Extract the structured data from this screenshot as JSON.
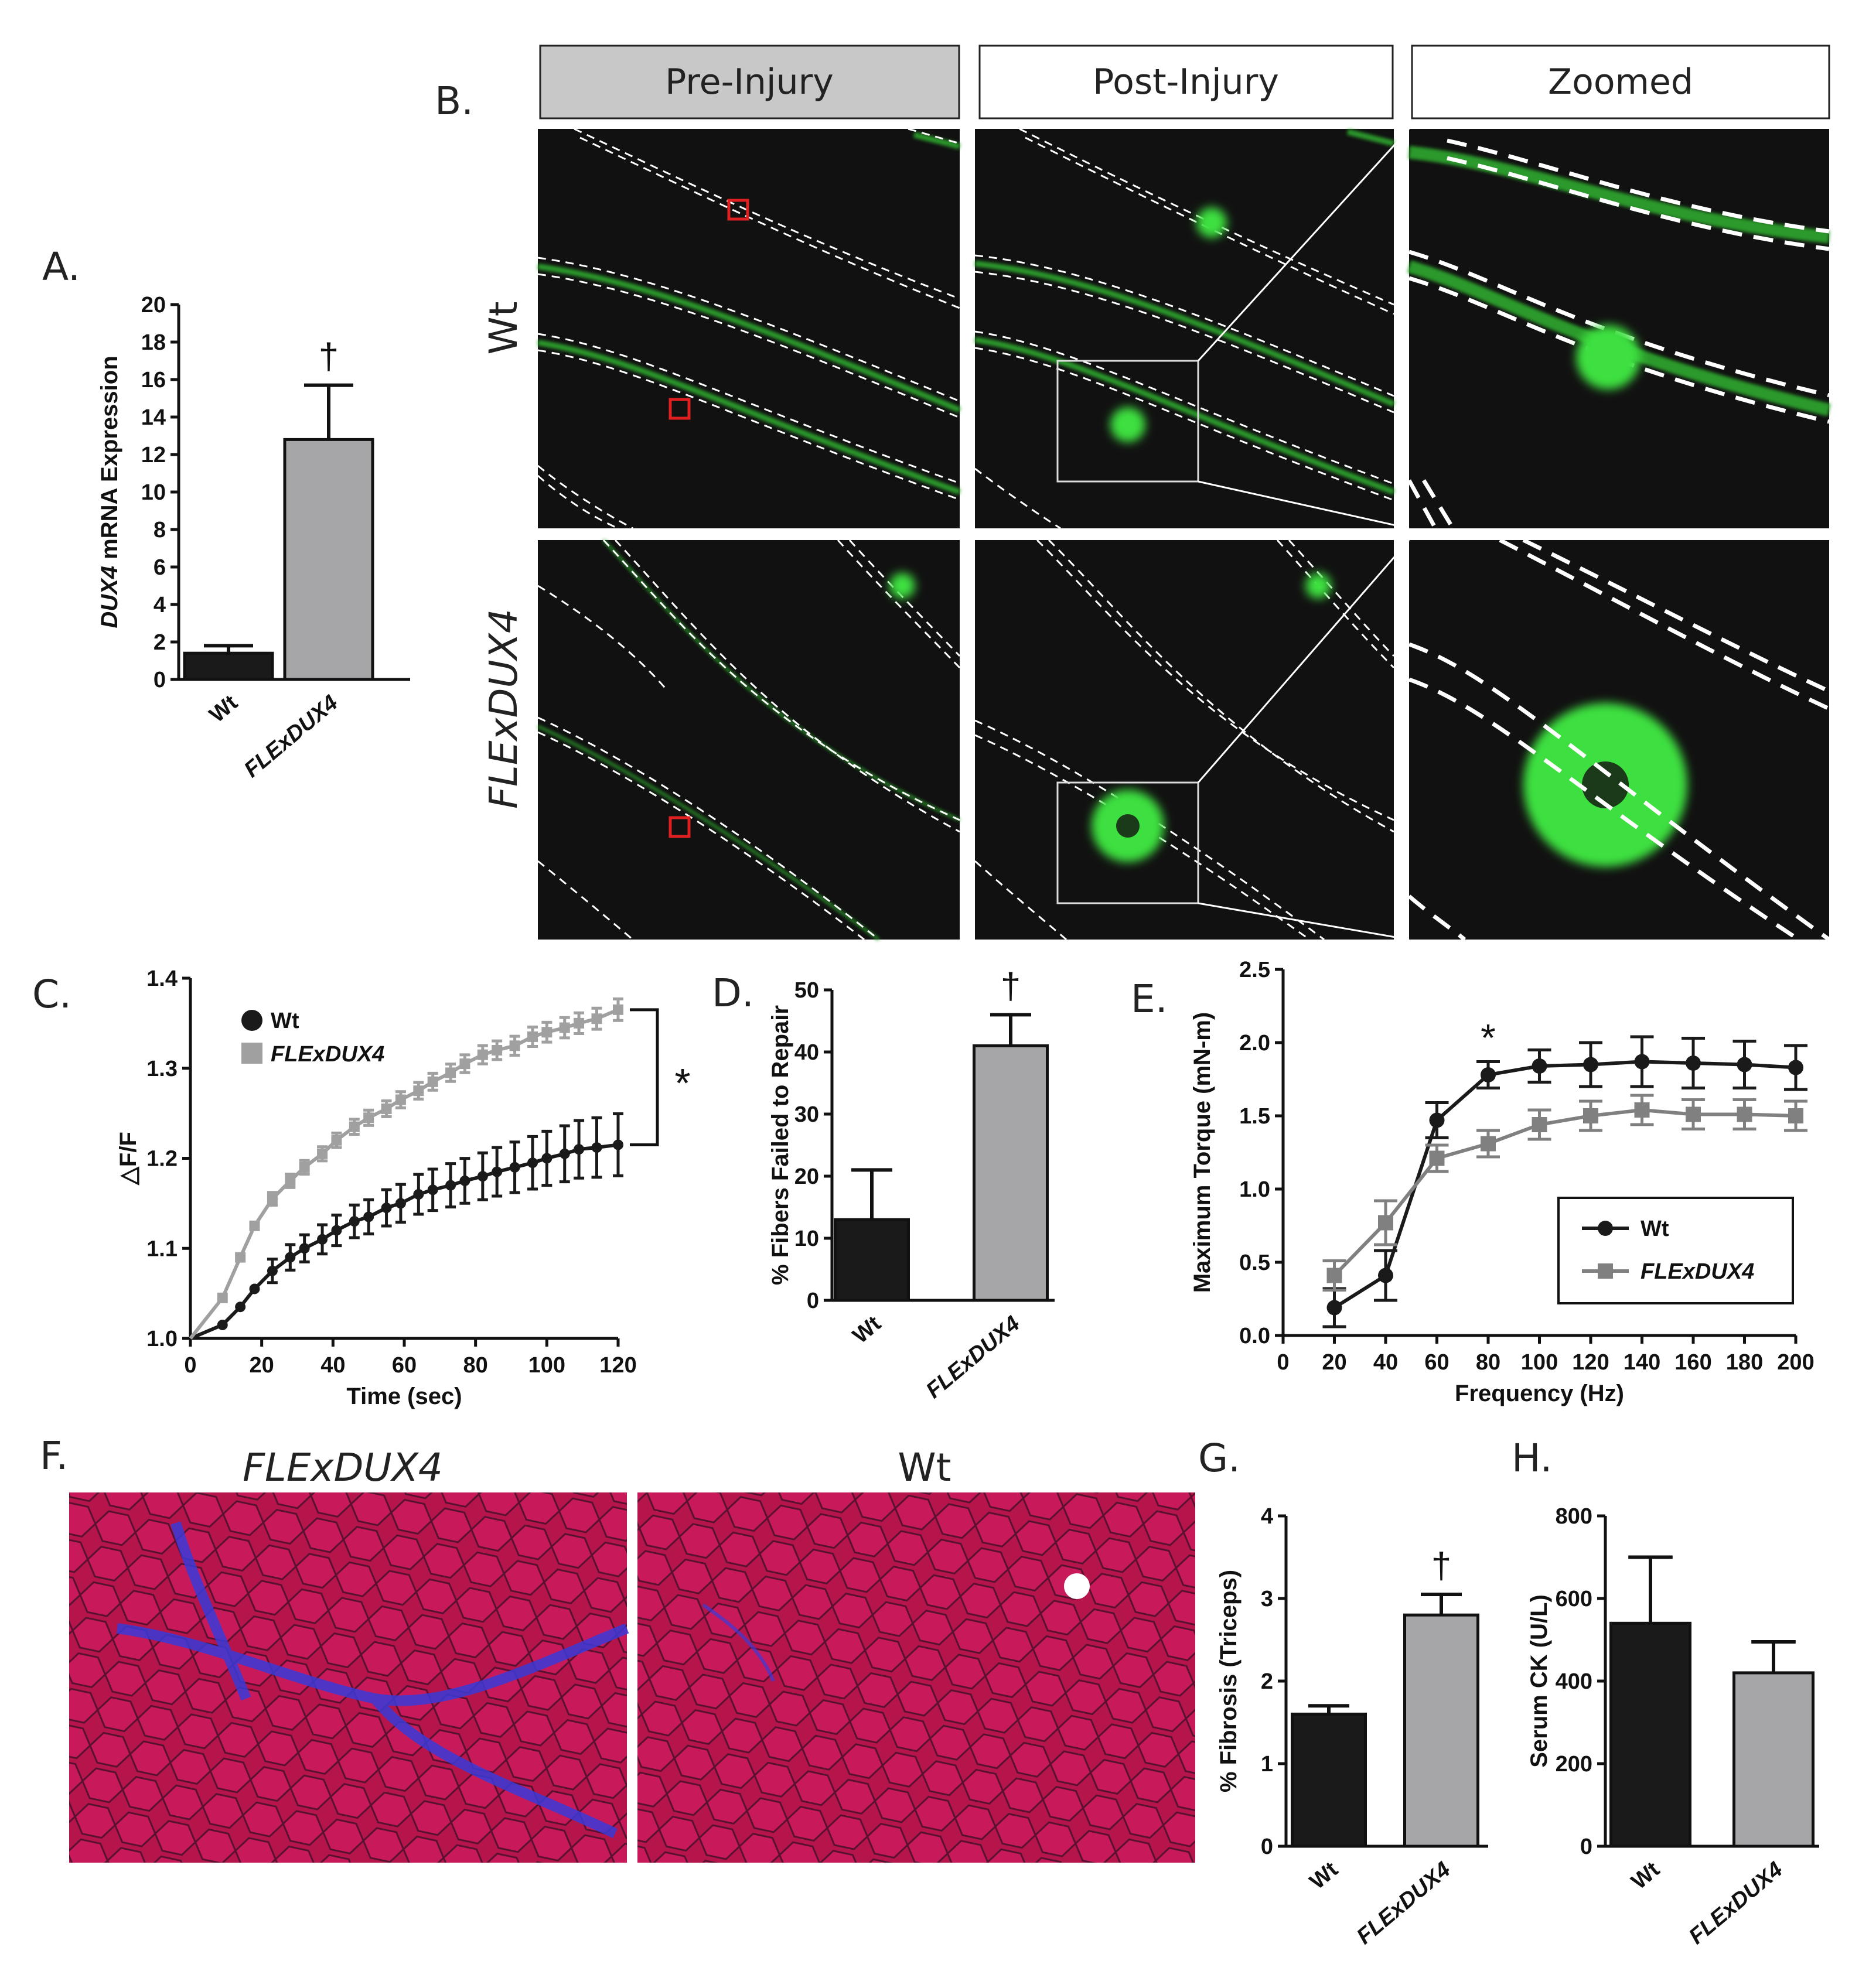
{
  "panel_letters": {
    "A": "A.",
    "B": "B.",
    "C": "C.",
    "D": "D.",
    "E": "E.",
    "F": "F.",
    "G": "G.",
    "H": "H."
  },
  "panelB": {
    "columns": [
      "Pre-Injury",
      "Post-Injury",
      "Zoomed"
    ],
    "rows": [
      "Wt",
      "FLExDUX4"
    ]
  },
  "panelF": {
    "left_label": "FLExDUX4",
    "right_label": "Wt"
  },
  "colors": {
    "wt": "#1a1a1a",
    "flex_bar": "#a6a6a8",
    "flex_line_C": "#a0a0a0",
    "flex_line_E": "#808080",
    "green": "#3ee040"
  },
  "chart_data": [
    {
      "id": "A",
      "type": "bar",
      "categories": [
        "Wt",
        "FLExDUX4"
      ],
      "values": [
        1.4,
        12.8
      ],
      "errors": [
        0.4,
        2.9
      ],
      "ylabel_italic": "DUX4",
      "ylabel_rest": " mRNA Expression",
      "ylim": [
        0,
        20
      ],
      "yticks": [
        0,
        2,
        4,
        6,
        8,
        10,
        12,
        14,
        16,
        18,
        20
      ],
      "annotation": "†"
    },
    {
      "id": "C",
      "type": "line",
      "xlabel": "Time (sec)",
      "ylabel": "△F/F",
      "xlim": [
        0,
        120
      ],
      "ylim": [
        1.0,
        1.4
      ],
      "xticks": [
        0,
        20,
        40,
        60,
        80,
        100,
        120
      ],
      "yticks": [
        "1.0",
        "1.1",
        "1.2",
        "1.3",
        "1.4"
      ],
      "legend": [
        "Wt",
        "FLExDUX4"
      ],
      "annotation": "*",
      "series": [
        {
          "name": "Wt",
          "x": [
            0,
            9,
            14,
            18,
            23,
            28,
            32,
            37,
            41,
            46,
            50,
            55,
            59,
            64,
            68,
            73,
            77,
            82,
            86,
            91,
            96,
            100,
            105,
            109,
            114,
            120
          ],
          "y": [
            1.0,
            1.015,
            1.035,
            1.055,
            1.075,
            1.09,
            1.1,
            1.11,
            1.12,
            1.13,
            1.135,
            1.145,
            1.15,
            1.16,
            1.165,
            1.17,
            1.175,
            1.18,
            1.185,
            1.19,
            1.195,
            1.2,
            1.205,
            1.21,
            1.212,
            1.215
          ]
        },
        {
          "name": "FLExDUX4",
          "x": [
            0,
            9,
            14,
            18,
            23,
            28,
            32,
            37,
            41,
            46,
            50,
            55,
            59,
            64,
            68,
            73,
            77,
            82,
            86,
            91,
            96,
            100,
            105,
            109,
            114,
            120
          ],
          "y": [
            1.0,
            1.045,
            1.09,
            1.125,
            1.155,
            1.175,
            1.19,
            1.205,
            1.22,
            1.235,
            1.245,
            1.255,
            1.265,
            1.275,
            1.285,
            1.295,
            1.305,
            1.315,
            1.32,
            1.325,
            1.335,
            1.34,
            1.345,
            1.35,
            1.355,
            1.365
          ]
        }
      ]
    },
    {
      "id": "D",
      "type": "bar",
      "categories": [
        "Wt",
        "FLExDUX4"
      ],
      "values": [
        13,
        41
      ],
      "errors": [
        8,
        5
      ],
      "ylabel": "% Fibers Failed to Repair",
      "ylim": [
        0,
        50
      ],
      "yticks": [
        0,
        10,
        20,
        30,
        40,
        50
      ],
      "annotation": "†"
    },
    {
      "id": "E",
      "type": "line",
      "xlabel": "Frequency (Hz)",
      "ylabel": "Maximum Torque (mN-m)",
      "xlim": [
        0,
        200
      ],
      "ylim": [
        0,
        2.5
      ],
      "xticks": [
        0,
        20,
        40,
        60,
        80,
        100,
        120,
        140,
        160,
        180,
        200
      ],
      "yticks": [
        "0.0",
        "0.5",
        "1.0",
        "1.5",
        "2.0",
        "2.5"
      ],
      "legend": [
        "Wt",
        "FLExDUX4"
      ],
      "annotation": "*",
      "series": [
        {
          "name": "Wt",
          "x": [
            20,
            40,
            60,
            80,
            100,
            120,
            140,
            160,
            180,
            200
          ],
          "y": [
            0.19,
            0.41,
            1.47,
            1.78,
            1.84,
            1.85,
            1.87,
            1.86,
            1.85,
            1.83
          ],
          "err": [
            0.13,
            0.17,
            0.12,
            0.09,
            0.11,
            0.15,
            0.17,
            0.17,
            0.16,
            0.15
          ]
        },
        {
          "name": "FLExDUX4",
          "x": [
            20,
            40,
            60,
            80,
            100,
            120,
            140,
            160,
            180,
            200
          ],
          "y": [
            0.41,
            0.77,
            1.21,
            1.31,
            1.44,
            1.5,
            1.54,
            1.51,
            1.51,
            1.5
          ],
          "err": [
            0.1,
            0.15,
            0.09,
            0.09,
            0.1,
            0.1,
            0.1,
            0.1,
            0.1,
            0.1
          ]
        }
      ]
    },
    {
      "id": "G",
      "type": "bar",
      "categories": [
        "Wt",
        "FLExDUX4"
      ],
      "values": [
        1.6,
        2.8
      ],
      "errors": [
        0.1,
        0.25
      ],
      "ylabel": "% Fibrosis (Triceps)",
      "ylim": [
        0,
        4
      ],
      "yticks": [
        0,
        1,
        2,
        3,
        4
      ],
      "annotation": "†"
    },
    {
      "id": "H",
      "type": "bar",
      "categories": [
        "Wt",
        "FLExDUX4"
      ],
      "values": [
        540,
        420
      ],
      "errors": [
        160,
        75
      ],
      "ylabel": "Serum CK (U/L)",
      "ylim": [
        0,
        800
      ],
      "yticks": [
        0,
        200,
        400,
        600,
        800
      ]
    }
  ]
}
